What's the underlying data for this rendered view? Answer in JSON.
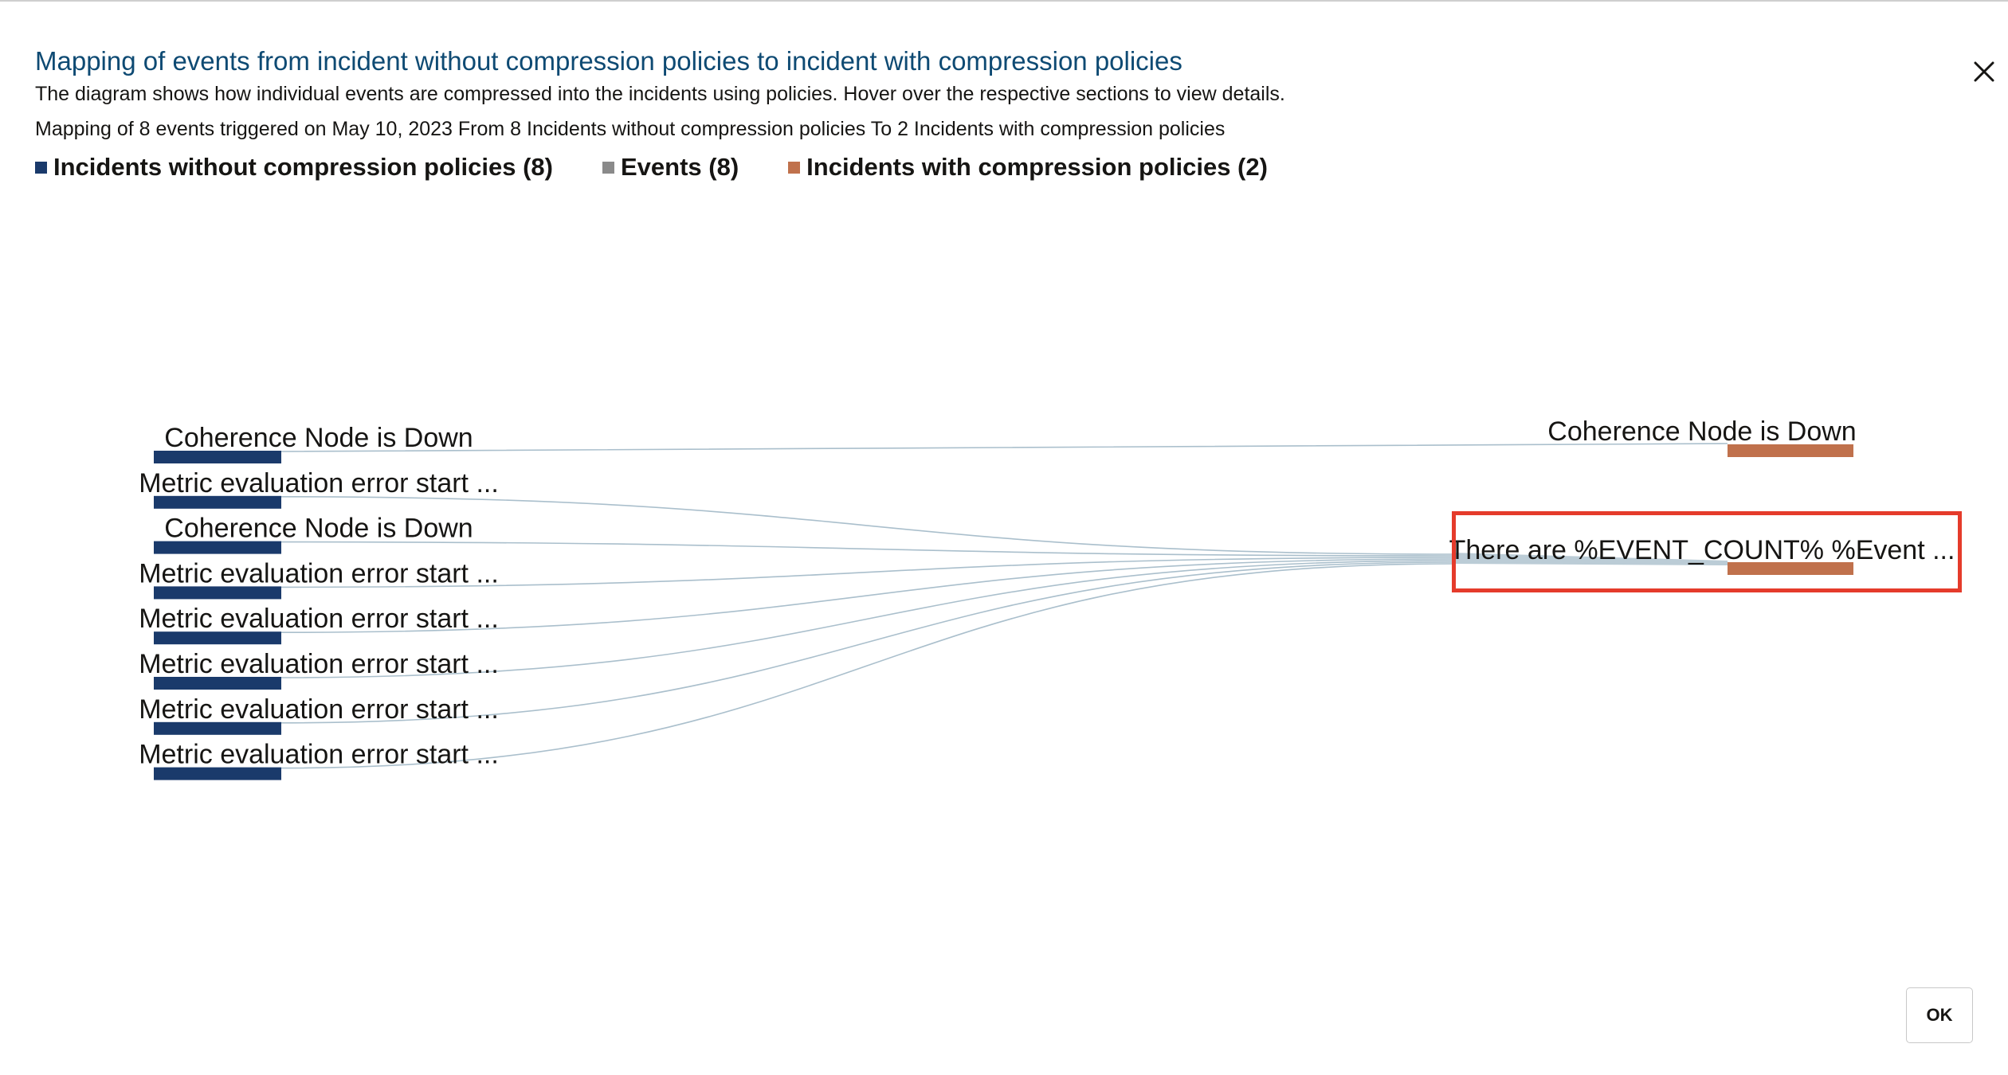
{
  "dialog": {
    "title": "Mapping of events from incident without compression policies to incident with compression policies",
    "description": "The diagram shows how individual events are compressed into the incidents using policies. Hover over the respective sections to view details.",
    "mapping_summary": "Mapping of 8 events triggered on May 10, 2023 From 8 Incidents without compression policies To 2 Incidents with compression policies",
    "close_icon": "close-icon",
    "ok_label": "OK"
  },
  "legend": [
    {
      "label": "Incidents without compression policies (8)",
      "color": "#1a3a6b"
    },
    {
      "label": "Events (8)",
      "color": "#8a8a8a"
    },
    {
      "label": "Incidents with compression policies (2)",
      "color": "#c0714c"
    }
  ],
  "chart_data": {
    "type": "sankey",
    "colors": {
      "source": "#1a3a6b",
      "target": "#c0714c",
      "link": "#aabfcc"
    },
    "sources": [
      {
        "label": "Coherence Node is Down",
        "events": 1
      },
      {
        "label": "Metric evaluation error start ...",
        "events": 1
      },
      {
        "label": "Coherence Node is Down",
        "events": 1
      },
      {
        "label": "Metric evaluation error start ...",
        "events": 1
      },
      {
        "label": "Metric evaluation error start ...",
        "events": 1
      },
      {
        "label": "Metric evaluation error start ...",
        "events": 1
      },
      {
        "label": "Metric evaluation error start ...",
        "events": 1
      },
      {
        "label": "Metric evaluation error start ...",
        "events": 1
      }
    ],
    "targets": [
      {
        "label": "Coherence Node is Down",
        "events": 1
      },
      {
        "label": "There are %EVENT_COUNT% %Event ...",
        "events": 7
      }
    ],
    "links": [
      {
        "source": 0,
        "target": 0,
        "value": 1
      },
      {
        "source": 1,
        "target": 1,
        "value": 1
      },
      {
        "source": 2,
        "target": 1,
        "value": 1
      },
      {
        "source": 3,
        "target": 1,
        "value": 1
      },
      {
        "source": 4,
        "target": 1,
        "value": 1
      },
      {
        "source": 5,
        "target": 1,
        "value": 1
      },
      {
        "source": 6,
        "target": 1,
        "value": 1
      },
      {
        "source": 7,
        "target": 1,
        "value": 1
      }
    ]
  }
}
